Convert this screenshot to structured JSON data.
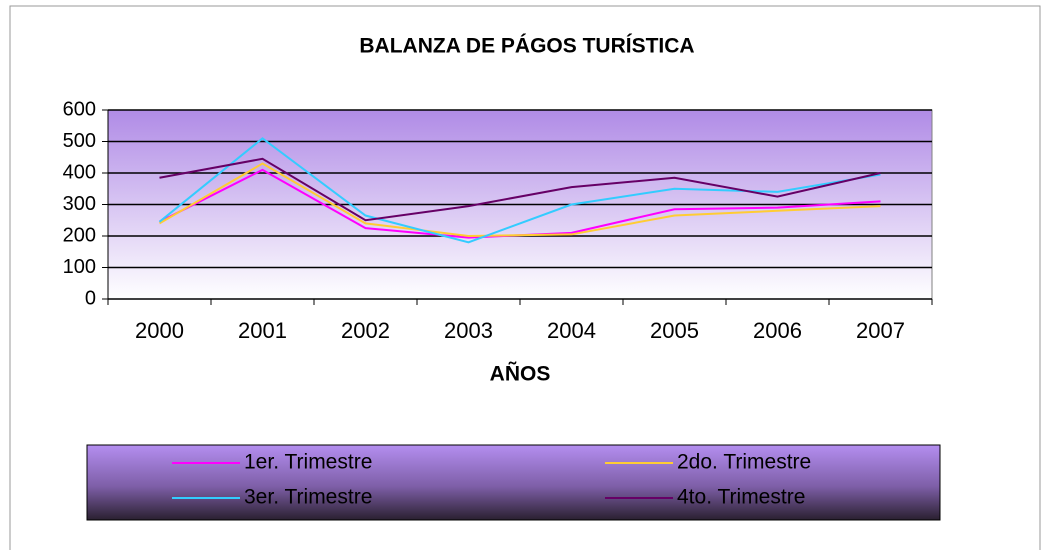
{
  "chart_data": {
    "type": "line",
    "title": "BALANZA DE PÁGOS TURÍSTICA",
    "x_label": "AÑOS",
    "categories": [
      "2000",
      "2001",
      "2002",
      "2003",
      "2004",
      "2005",
      "2006",
      "2007"
    ],
    "series": [
      {
        "name": "1er. Trimestre",
        "color": "#ff00ff",
        "values": [
          245,
          410,
          225,
          195,
          210,
          285,
          290,
          310
        ]
      },
      {
        "name": "2do. Trimestre",
        "color": "#ffcc33",
        "values": [
          240,
          430,
          240,
          200,
          205,
          265,
          280,
          295
        ]
      },
      {
        "name": "3er. Trimestre",
        "color": "#33ccff",
        "values": [
          245,
          510,
          265,
          180,
          300,
          350,
          340,
          395
        ]
      },
      {
        "name": "4to. Trimestre",
        "color": "#660066",
        "values": [
          385,
          445,
          250,
          295,
          355,
          385,
          325,
          400
        ]
      }
    ],
    "ylim": [
      0,
      600
    ],
    "yticks": [
      0,
      100,
      200,
      300,
      400,
      500,
      600
    ],
    "grid": true,
    "legend": "bottom"
  }
}
